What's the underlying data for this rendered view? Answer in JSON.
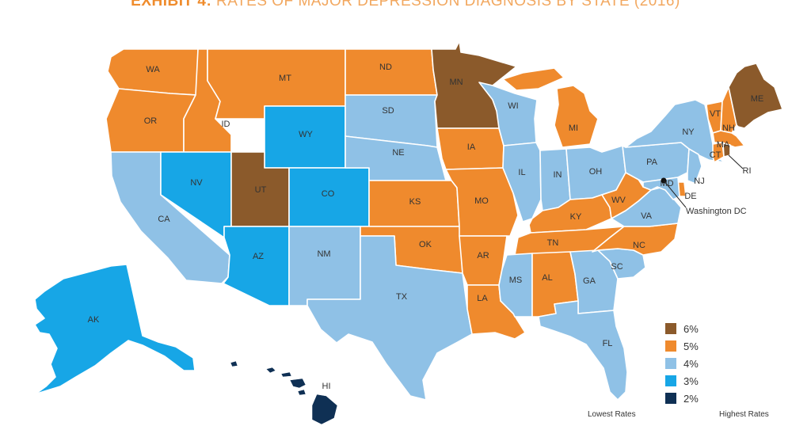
{
  "title": {
    "bold": "EXHIBIT 4:",
    "rest": " RATES OF MAJOR DEPRESSION DIAGNOSIS BY STATE (2016)"
  },
  "colors": {
    "6%": "#8b5a2b",
    "5%": "#ef8a2d",
    "4%": "#8fc1e6",
    "3%": "#17a6e6",
    "2%": "#0f3054"
  },
  "states": [
    {
      "id": "WA",
      "rate": "5%"
    },
    {
      "id": "OR",
      "rate": "5%"
    },
    {
      "id": "CA",
      "rate": "4%"
    },
    {
      "id": "ID",
      "rate": "5%"
    },
    {
      "id": "NV",
      "rate": "3%"
    },
    {
      "id": "MT",
      "rate": "5%"
    },
    {
      "id": "WY",
      "rate": "3%"
    },
    {
      "id": "UT",
      "rate": "6%"
    },
    {
      "id": "AZ",
      "rate": "3%"
    },
    {
      "id": "CO",
      "rate": "3%"
    },
    {
      "id": "NM",
      "rate": "4%"
    },
    {
      "id": "ND",
      "rate": "5%"
    },
    {
      "id": "SD",
      "rate": "4%"
    },
    {
      "id": "NE",
      "rate": "4%"
    },
    {
      "id": "KS",
      "rate": "5%"
    },
    {
      "id": "OK",
      "rate": "5%"
    },
    {
      "id": "TX",
      "rate": "4%"
    },
    {
      "id": "MN",
      "rate": "6%"
    },
    {
      "id": "IA",
      "rate": "5%"
    },
    {
      "id": "MO",
      "rate": "5%"
    },
    {
      "id": "AR",
      "rate": "5%"
    },
    {
      "id": "LA",
      "rate": "5%"
    },
    {
      "id": "WI",
      "rate": "4%"
    },
    {
      "id": "IL",
      "rate": "4%"
    },
    {
      "id": "MI",
      "rate": "5%"
    },
    {
      "id": "IN",
      "rate": "4%"
    },
    {
      "id": "OH",
      "rate": "4%"
    },
    {
      "id": "KY",
      "rate": "5%"
    },
    {
      "id": "TN",
      "rate": "5%"
    },
    {
      "id": "MS",
      "rate": "4%"
    },
    {
      "id": "AL",
      "rate": "5%"
    },
    {
      "id": "GA",
      "rate": "4%"
    },
    {
      "id": "FL",
      "rate": "4%"
    },
    {
      "id": "SC",
      "rate": "4%"
    },
    {
      "id": "NC",
      "rate": "5%"
    },
    {
      "id": "VA",
      "rate": "4%"
    },
    {
      "id": "WV",
      "rate": "5%"
    },
    {
      "id": "PA",
      "rate": "4%"
    },
    {
      "id": "NY",
      "rate": "4%"
    },
    {
      "id": "VT",
      "rate": "5%"
    },
    {
      "id": "NH",
      "rate": "5%"
    },
    {
      "id": "ME",
      "rate": "6%"
    },
    {
      "id": "MA",
      "rate": "5%"
    },
    {
      "id": "CT",
      "rate": "5%"
    },
    {
      "id": "RI",
      "rate": "6%"
    },
    {
      "id": "NJ",
      "rate": "4%"
    },
    {
      "id": "DE",
      "rate": "5%"
    },
    {
      "id": "MD",
      "rate": "4%"
    },
    {
      "id": "AK",
      "rate": "3%"
    },
    {
      "id": "HI",
      "rate": "2%"
    }
  ],
  "dc_label": "Washington DC",
  "legend": [
    {
      "label": "6%",
      "color": "#8b5a2b"
    },
    {
      "label": "5%",
      "color": "#ef8a2d"
    },
    {
      "label": "4%",
      "color": "#8fc1e6"
    },
    {
      "label": "3%",
      "color": "#17a6e6"
    },
    {
      "label": "2%",
      "color": "#0f3054"
    }
  ],
  "scale": {
    "low": "Lowest Rates",
    "high": "Highest Rates"
  }
}
